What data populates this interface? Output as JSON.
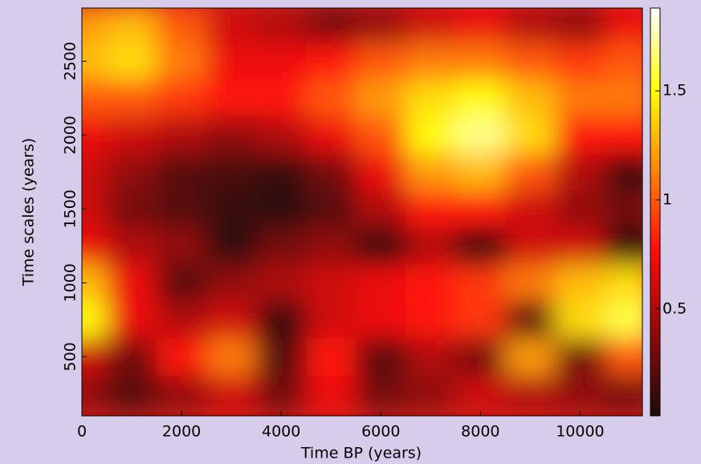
{
  "chart_data": {
    "type": "heatmap",
    "x_label": "Time BP (years)",
    "y_label": "Time scales (years)",
    "x": [
      0,
      1000,
      2000,
      3000,
      4000,
      5000,
      6000,
      7000,
      8000,
      9000,
      10000,
      11000
    ],
    "y": [
      2750,
      2500,
      2250,
      2000,
      1750,
      1500,
      1250,
      1000,
      750,
      500,
      250
    ],
    "z": [
      [
        1.2,
        1.3,
        1.0,
        0.6,
        0.5,
        0.3,
        0.4,
        0.6,
        0.7,
        0.5,
        0.4,
        0.7
      ],
      [
        1.3,
        1.4,
        1.1,
        0.7,
        0.7,
        0.8,
        1.0,
        1.1,
        1.1,
        1.0,
        0.9,
        1.0
      ],
      [
        1.0,
        1.0,
        0.9,
        0.8,
        0.8,
        1.0,
        1.2,
        1.4,
        1.5,
        1.3,
        1.1,
        1.1
      ],
      [
        0.7,
        0.6,
        0.5,
        0.4,
        0.5,
        0.7,
        1.0,
        1.5,
        1.7,
        1.4,
        0.8,
        0.8
      ],
      [
        0.6,
        0.4,
        0.2,
        0.15,
        0.1,
        0.3,
        0.7,
        1.2,
        1.3,
        1.0,
        0.5,
        0.1
      ],
      [
        0.6,
        0.3,
        0.2,
        0.1,
        0.05,
        0.2,
        0.5,
        0.8,
        0.8,
        0.6,
        0.4,
        0.3
      ],
      [
        0.7,
        0.5,
        0.4,
        0.05,
        0.3,
        0.4,
        0.05,
        0.5,
        0.05,
        0.6,
        0.6,
        0.05
      ],
      [
        1.3,
        0.7,
        0.2,
        0.4,
        0.5,
        0.6,
        0.7,
        0.8,
        0.9,
        1.1,
        1.3,
        1.4
      ],
      [
        1.5,
        0.7,
        0.5,
        0.6,
        0.1,
        0.6,
        0.7,
        0.8,
        0.9,
        0.2,
        1.4,
        1.6
      ],
      [
        0.6,
        0.3,
        0.8,
        1.1,
        0.2,
        0.8,
        0.2,
        0.5,
        0.3,
        1.2,
        0.3,
        1.0
      ],
      [
        0.4,
        0.2,
        0.4,
        0.6,
        0.3,
        0.7,
        0.3,
        0.4,
        0.6,
        0.5,
        0.4,
        0.3
      ]
    ],
    "xlim": [
      0,
      11250
    ],
    "ylim": [
      100,
      2860
    ],
    "xticks": [
      0,
      2000,
      4000,
      6000,
      8000,
      10000
    ],
    "yticks": [
      500,
      1000,
      1500,
      2000,
      2500
    ],
    "colormap": "hot",
    "clim": [
      0.01,
      1.88
    ],
    "cticks": [
      0.5,
      1,
      1.5
    ]
  }
}
